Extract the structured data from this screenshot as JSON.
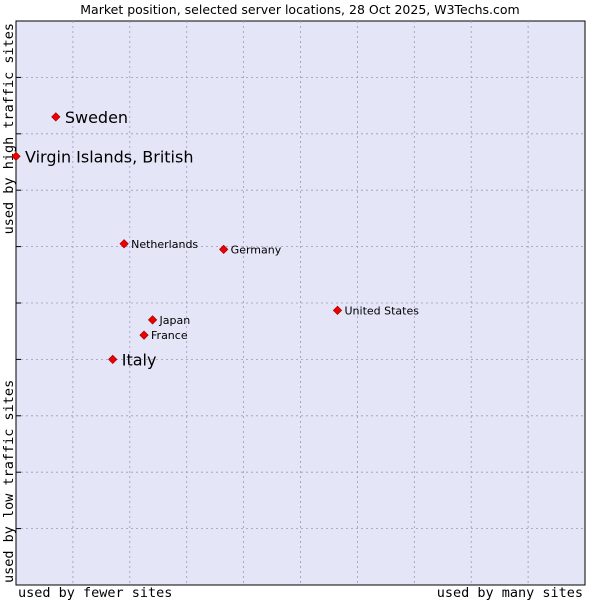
{
  "chart_data": {
    "type": "scatter",
    "title": "Market position, selected server locations, 28 Oct 2025, W3Techs.com",
    "xlabel_left": "used by fewer sites",
    "xlabel_right": "used by many sites",
    "ylabel_bottom": "used by low traffic sites",
    "ylabel_top": "used by high traffic sites",
    "xlim": [
      0,
      10
    ],
    "ylim": [
      0,
      10
    ],
    "grid": true,
    "gridlines": 10,
    "colors": {
      "plot_background": "#e4e6f8",
      "grid": "#9a9ab8",
      "point": "#ee0000",
      "text": "#000000"
    },
    "points": [
      {
        "name": "Sweden",
        "x": 0.7,
        "y": 8.3,
        "highlight": true
      },
      {
        "name": "Virgin Islands, British",
        "x": 0.0,
        "y": 7.6,
        "highlight": true
      },
      {
        "name": "Netherlands",
        "x": 1.9,
        "y": 6.05,
        "highlight": false
      },
      {
        "name": "Germany",
        "x": 3.65,
        "y": 5.95,
        "highlight": false
      },
      {
        "name": "United States",
        "x": 5.65,
        "y": 4.87,
        "highlight": false
      },
      {
        "name": "Japan",
        "x": 2.4,
        "y": 4.7,
        "highlight": false
      },
      {
        "name": "France",
        "x": 2.25,
        "y": 4.43,
        "highlight": false
      },
      {
        "name": "Italy",
        "x": 1.7,
        "y": 4.0,
        "highlight": true
      }
    ]
  }
}
